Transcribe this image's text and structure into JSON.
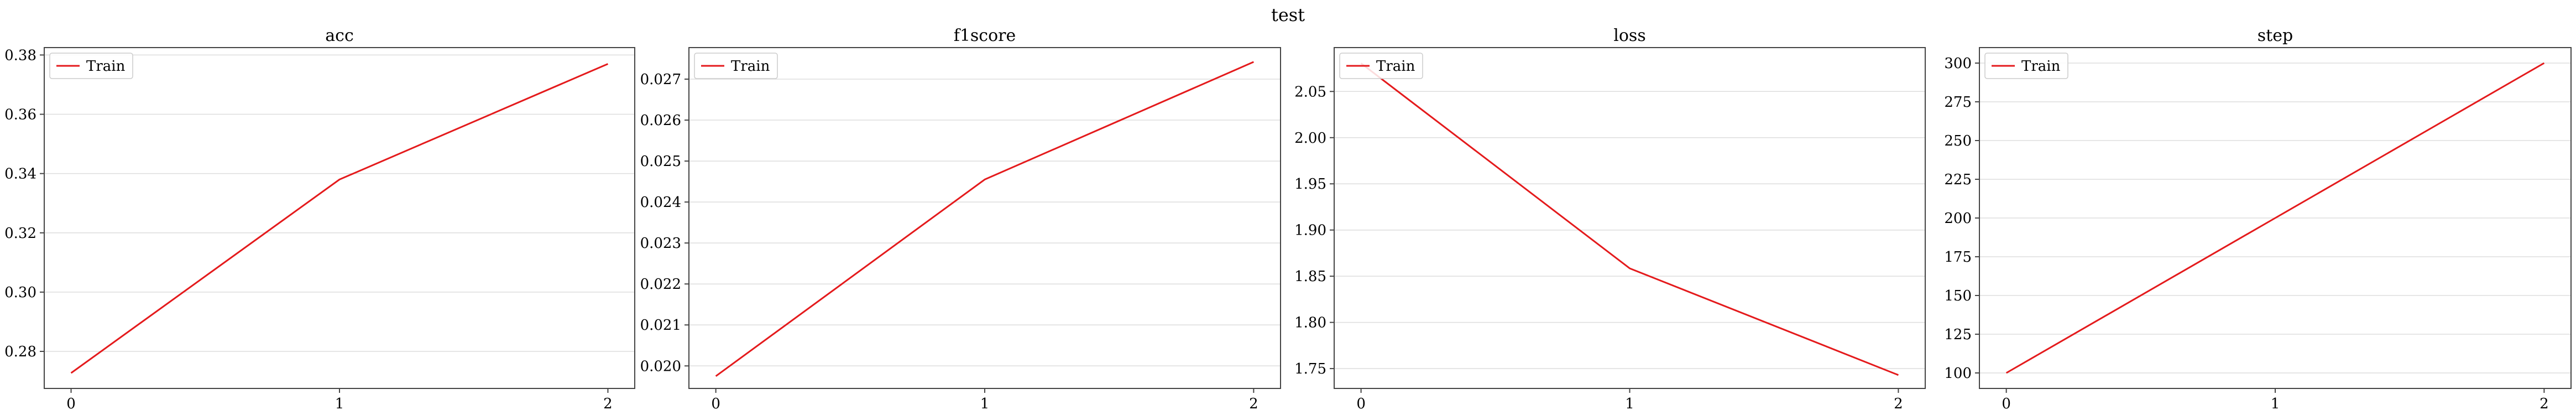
{
  "figure": {
    "title": "test"
  },
  "colors": {
    "train": "#e41a1c",
    "grid": "#dddddd",
    "axis": "#444444"
  },
  "chart_data": [
    {
      "type": "line",
      "title": "acc",
      "xlabel": "",
      "ylabel": "",
      "x": [
        0,
        1,
        2
      ],
      "xticks": [
        "0",
        "1",
        "2"
      ],
      "xlim": [
        -0.1,
        2.1
      ],
      "ylim": [
        0.2675,
        0.3825
      ],
      "yticks": [
        0.28,
        0.3,
        0.32,
        0.34,
        0.36,
        0.38
      ],
      "ytick_labels": [
        "0.28",
        "0.30",
        "0.32",
        "0.34",
        "0.36",
        "0.38"
      ],
      "grid": true,
      "legend": "upper-left",
      "series": [
        {
          "name": "Train",
          "values": [
            0.2727,
            0.338,
            0.377
          ]
        }
      ]
    },
    {
      "type": "line",
      "title": "f1score",
      "xlabel": "",
      "ylabel": "",
      "x": [
        0,
        1,
        2
      ],
      "xticks": [
        "0",
        "1",
        "2"
      ],
      "xlim": [
        -0.1,
        2.1
      ],
      "ylim": [
        0.01945,
        0.02777
      ],
      "yticks": [
        0.02,
        0.021,
        0.022,
        0.023,
        0.024,
        0.025,
        0.026,
        0.027
      ],
      "ytick_labels": [
        "0.020",
        "0.021",
        "0.022",
        "0.023",
        "0.024",
        "0.025",
        "0.026",
        "0.027"
      ],
      "grid": true,
      "legend": "upper-left",
      "series": [
        {
          "name": "Train",
          "values": [
            0.01975,
            0.02455,
            0.02742
          ]
        }
      ]
    },
    {
      "type": "line",
      "title": "loss",
      "xlabel": "",
      "ylabel": "",
      "x": [
        0,
        1,
        2
      ],
      "xticks": [
        "0",
        "1",
        "2"
      ],
      "xlim": [
        -0.1,
        2.1
      ],
      "ylim": [
        1.7285,
        2.0975
      ],
      "yticks": [
        1.75,
        1.8,
        1.85,
        1.9,
        1.95,
        2.0,
        2.05
      ],
      "ytick_labels": [
        "1.75",
        "1.80",
        "1.85",
        "1.90",
        "1.95",
        "2.00",
        "2.05"
      ],
      "grid": true,
      "legend": "upper-left",
      "series": [
        {
          "name": "Train",
          "values": [
            2.0805,
            1.8585,
            1.743
          ]
        }
      ]
    },
    {
      "type": "line",
      "title": "step",
      "xlabel": "",
      "ylabel": "",
      "x": [
        0,
        1,
        2
      ],
      "xticks": [
        "0",
        "1",
        "2"
      ],
      "xlim": [
        -0.1,
        2.1
      ],
      "ylim": [
        90,
        310
      ],
      "yticks": [
        100,
        125,
        150,
        175,
        200,
        225,
        250,
        275,
        300
      ],
      "ytick_labels": [
        "100",
        "125",
        "150",
        "175",
        "200",
        "225",
        "250",
        "275",
        "300"
      ],
      "grid": true,
      "legend": "upper-left",
      "series": [
        {
          "name": "Train",
          "values": [
            100,
            200,
            300
          ]
        }
      ]
    }
  ]
}
